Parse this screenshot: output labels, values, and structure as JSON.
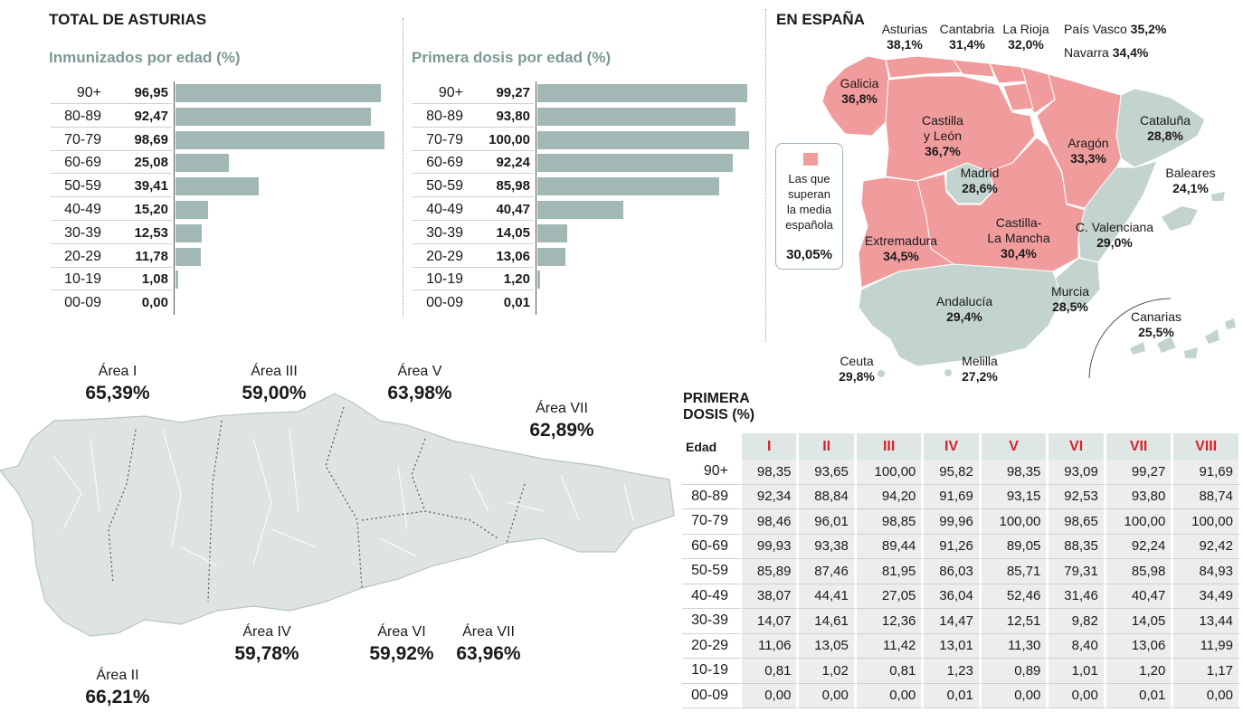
{
  "header": {
    "title": "TOTAL DE ASTURIAS",
    "chart1_title": "Inmunizados por edad (%)",
    "chart2_title": "Primera dosis por edad (%)"
  },
  "chart_data": [
    {
      "type": "bar",
      "title": "Inmunizados por edad (%)",
      "categories": [
        "90+",
        "80-89",
        "70-79",
        "60-69",
        "50-59",
        "40-49",
        "30-39",
        "20-29",
        "10-19",
        "00-09"
      ],
      "values": [
        96.95,
        92.47,
        98.69,
        25.08,
        39.41,
        15.2,
        12.53,
        11.78,
        1.08,
        0.0
      ],
      "labels": [
        "96,95",
        "92,47",
        "98,69",
        "25,08",
        "39,41",
        "15,20",
        "12,53",
        "11,78",
        "1,08",
        "0,00"
      ],
      "xlim": [
        0,
        100
      ]
    },
    {
      "type": "bar",
      "title": "Primera dosis por edad (%)",
      "categories": [
        "90+",
        "80-89",
        "70-79",
        "60-69",
        "50-59",
        "40-49",
        "30-39",
        "20-29",
        "10-19",
        "00-09"
      ],
      "values": [
        99.27,
        93.8,
        100.0,
        92.24,
        85.98,
        40.47,
        14.05,
        13.06,
        1.2,
        0.01
      ],
      "labels": [
        "99,27",
        "93,80",
        "100,00",
        "92,24",
        "85,98",
        "40,47",
        "14,05",
        "13,06",
        "1,20",
        "0,01"
      ],
      "xlim": [
        0,
        100
      ]
    },
    {
      "type": "table",
      "title": "PRIMERA DOSIS (%)",
      "title_line1": "PRIMERA",
      "title_line2": "DOSIS (%)",
      "row_header": "Edad",
      "columns": [
        "I",
        "II",
        "III",
        "IV",
        "V",
        "VI",
        "VII",
        "VIII"
      ],
      "rows": [
        {
          "age": "90+",
          "values": [
            "98,35",
            "93,65",
            "100,00",
            "95,82",
            "98,35",
            "93,09",
            "99,27",
            "91,69"
          ]
        },
        {
          "age": "80-89",
          "values": [
            "92,34",
            "88,84",
            "94,20",
            "91,69",
            "93,15",
            "92,53",
            "93,80",
            "88,74"
          ]
        },
        {
          "age": "70-79",
          "values": [
            "98,46",
            "96,01",
            "98,85",
            "99,96",
            "100,00",
            "98,65",
            "100,00",
            "100,00"
          ]
        },
        {
          "age": "60-69",
          "values": [
            "99,93",
            "93,38",
            "89,44",
            "91,26",
            "89,05",
            "88,35",
            "92,24",
            "92,42"
          ]
        },
        {
          "age": "50-59",
          "values": [
            "85,89",
            "87,46",
            "81,95",
            "86,03",
            "85,71",
            "79,31",
            "85,98",
            "84,93"
          ]
        },
        {
          "age": "40-49",
          "values": [
            "38,07",
            "44,41",
            "27,05",
            "36,04",
            "52,46",
            "31,46",
            "40,47",
            "34,49"
          ]
        },
        {
          "age": "30-39",
          "values": [
            "14,07",
            "14,61",
            "12,36",
            "14,47",
            "12,51",
            "9,82",
            "14,05",
            "13,44"
          ]
        },
        {
          "age": "20-29",
          "values": [
            "11,06",
            "13,05",
            "11,42",
            "13,01",
            "11,30",
            "8,40",
            "13,06",
            "11,99"
          ]
        },
        {
          "age": "10-19",
          "values": [
            "0,81",
            "1,02",
            "0,81",
            "1,23",
            "0,89",
            "1,01",
            "1,20",
            "1,17"
          ]
        },
        {
          "age": "00-09",
          "values": [
            "0,00",
            "0,00",
            "0,00",
            "0,01",
            "0,00",
            "0,00",
            "0,01",
            "0,00"
          ]
        }
      ]
    }
  ],
  "spain": {
    "title": "EN ESPAÑA",
    "legend_text": [
      "Las que",
      "superan",
      "la media",
      "española"
    ],
    "legend_value": "30,05%",
    "regions": {
      "asturias": {
        "name": "Asturias",
        "value": "38,1%"
      },
      "cantabria": {
        "name": "Cantabria",
        "value": "31,4%"
      },
      "larioja": {
        "name": "La Rioja",
        "value": "32,0%"
      },
      "paisvasco": {
        "name": "País Vasco",
        "value": "35,2%"
      },
      "navarra": {
        "name": "Navarra",
        "value": "34,4%"
      },
      "galicia": {
        "name": "Galicia",
        "value": "36,8%"
      },
      "castillaleon": {
        "name1": "Castilla",
        "name2": "y León",
        "value": "36,7%"
      },
      "aragon": {
        "name": "Aragón",
        "value": "33,3%"
      },
      "cataluna": {
        "name": "Cataluña",
        "value": "28,8%"
      },
      "madrid": {
        "name": "Madrid",
        "value": "28,6%"
      },
      "baleares": {
        "name": "Baleares",
        "value": "24,1%"
      },
      "castillamancha": {
        "name1": "Castilla-",
        "name2": "La Mancha",
        "value": "30,4%"
      },
      "valenciana": {
        "name": "C. Valenciana",
        "value": "29,0%"
      },
      "extremadura": {
        "name": "Extremadura",
        "value": "34,5%"
      },
      "andalucia": {
        "name": "Andalucía",
        "value": "29,4%"
      },
      "murcia": {
        "name": "Murcia",
        "value": "28,5%"
      },
      "canarias": {
        "name": "Canarias",
        "value": "25,5%"
      },
      "ceuta": {
        "name": "Ceuta",
        "value": "29,8%"
      },
      "melilla": {
        "name": "Melilla",
        "value": "27,2%"
      }
    }
  },
  "areas": {
    "a1": {
      "name": "Área I",
      "value": "65,39%"
    },
    "a3": {
      "name": "Área III",
      "value": "59,00%"
    },
    "a5": {
      "name": "Área V",
      "value": "63,98%"
    },
    "a7top": {
      "name": "Área VII",
      "value": "62,89%"
    },
    "a4": {
      "name": "Área IV",
      "value": "59,78%"
    },
    "a6": {
      "name": "Área VI",
      "value": "59,92%"
    },
    "a7b": {
      "name": "Área VII",
      "value": "63,96%"
    },
    "a2": {
      "name": "Área II",
      "value": "66,21%"
    }
  },
  "colors": {
    "bar": "#a2b8b5",
    "above": "#f19c9c",
    "below": "#c3d3d0",
    "accent_red": "#d8232a",
    "subtitle": "#7d9895"
  }
}
